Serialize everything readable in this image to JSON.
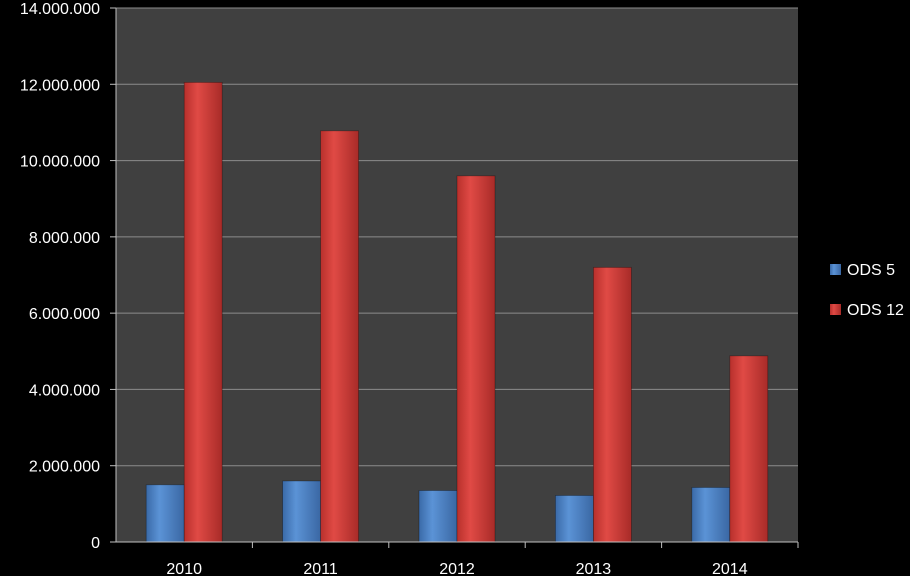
{
  "chart_data": {
    "type": "bar",
    "categories": [
      "2010",
      "2011",
      "2012",
      "2013",
      "2014"
    ],
    "series": [
      {
        "name": "ODS 5",
        "values": [
          1500000,
          1600000,
          1350000,
          1220000,
          1430000
        ],
        "color": "#4f81bd"
      },
      {
        "name": "ODS 12",
        "values": [
          12050000,
          10780000,
          9600000,
          7200000,
          4880000
        ],
        "color": "#c0504d"
      }
    ],
    "ylim": [
      0,
      14000000
    ],
    "yticks": [
      0,
      2000000,
      4000000,
      6000000,
      8000000,
      10000000,
      12000000,
      14000000
    ],
    "ytick_labels": [
      "0",
      "2.000.000",
      "4.000.000",
      "6.000.000",
      "8.000.000",
      "10.000.000",
      "12.000.000",
      "14.000.000"
    ],
    "title": "",
    "xlabel": "",
    "ylabel": "",
    "grid": true,
    "legend_position": "right",
    "plot_background": "#404040"
  }
}
